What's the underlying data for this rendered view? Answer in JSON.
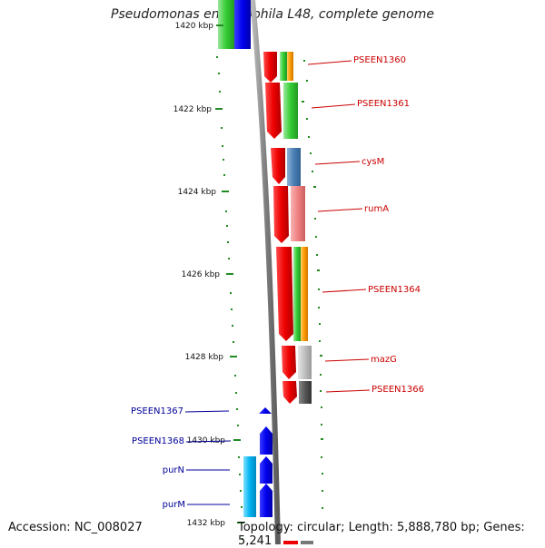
{
  "title": "Pseudomonas entomophila L48, complete genome",
  "accession": "Accession: NC_008027",
  "topology": "Topology: circular; Length: 5,888,780 bp; Genes: 5,241",
  "colors": {
    "forward_gene": "#ee0000",
    "reverse_gene": "#0000ee",
    "tick": "#228b22",
    "backbone": "#808080",
    "forward_label": "#cc0000",
    "reverse_label": "#000099"
  },
  "ticks": [
    "1420 kbp",
    "1422 kbp",
    "1424 kbp",
    "1426 kbp",
    "1428 kbp",
    "1430 kbp",
    "1432 kbp"
  ],
  "genes_forward": [
    {
      "name": "PSEEN1360"
    },
    {
      "name": "PSEEN1361"
    },
    {
      "name": "cysM"
    },
    {
      "name": "rumA"
    },
    {
      "name": "PSEEN1364"
    },
    {
      "name": "mazG"
    },
    {
      "name": "PSEEN1366"
    }
  ],
  "genes_reverse": [
    {
      "name": "PSEEN1367"
    },
    {
      "name": "PSEEN1368"
    },
    {
      "name": "purN"
    },
    {
      "name": "purM"
    }
  ]
}
